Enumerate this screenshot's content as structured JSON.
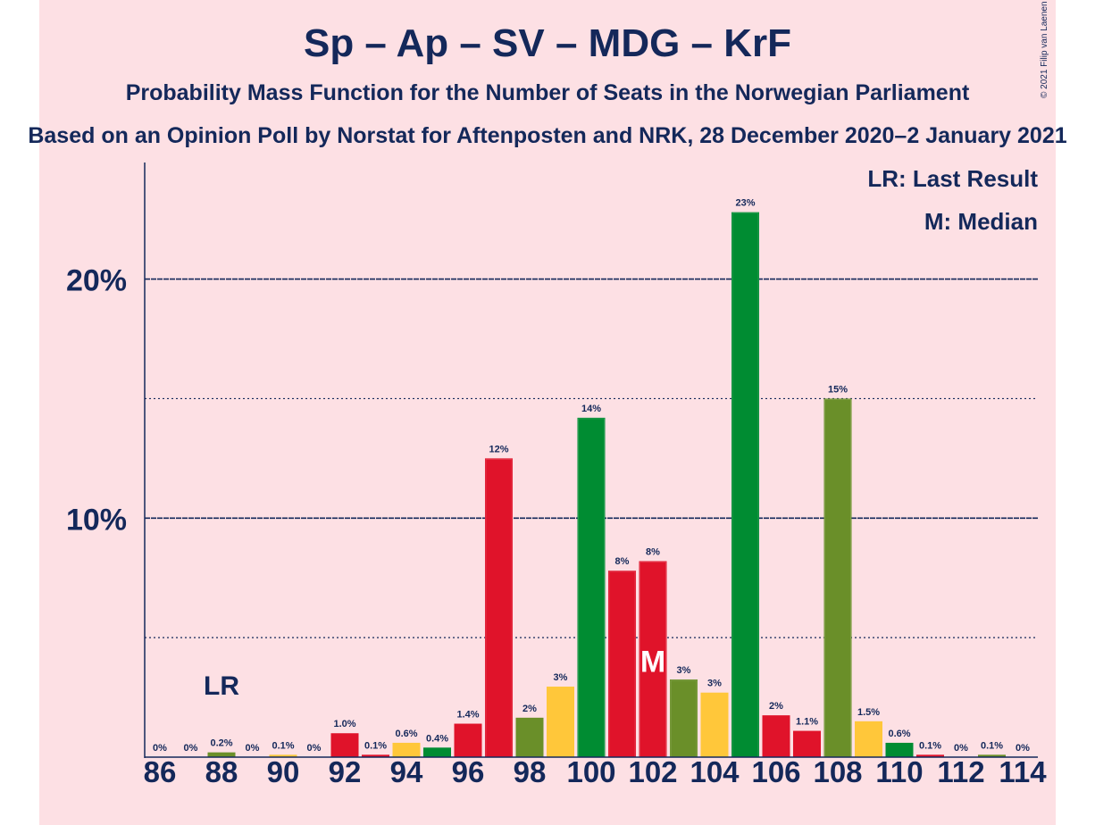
{
  "chart_data": {
    "type": "bar",
    "title": "Sp – Ap – SV – MDG – KrF",
    "subtitle": "Probability Mass Function for the Number of Seats in the Norwegian Parliament",
    "source_line": "Based on an Opinion Poll by Norstat for Aftenposten and NRK, 28 December 2020–2 January 2021",
    "credit": "© 2021 Filip van Laenen",
    "legend": {
      "lr": "LR: Last Result",
      "median": "M: Median",
      "placement": "top-right"
    },
    "x": [
      86,
      87,
      88,
      89,
      90,
      91,
      92,
      93,
      94,
      95,
      96,
      97,
      98,
      99,
      100,
      101,
      102,
      103,
      104,
      105,
      106,
      107,
      108,
      109,
      110,
      111,
      112,
      113,
      114
    ],
    "values": [
      0,
      0,
      0.2,
      0,
      0.1,
      0,
      1.0,
      0.1,
      0.6,
      0.4,
      1.4,
      12.5,
      1.65,
      2.95,
      14.2,
      7.8,
      8.2,
      3.25,
      2.7,
      22.8,
      1.75,
      1.1,
      15.0,
      1.5,
      0.6,
      0.1,
      0,
      0.1,
      0
    ],
    "labels": [
      "0%",
      "0%",
      "0.2%",
      "0%",
      "0.1%",
      "0%",
      "1.0%",
      "0.1%",
      "0.6%",
      "0.4%",
      "1.4%",
      "12%",
      "2%",
      "3%",
      "14%",
      "8%",
      "8%",
      "3%",
      "3%",
      "23%",
      "2%",
      "1.1%",
      "15%",
      "1.5%",
      "0.6%",
      "0.1%",
      "0%",
      "0.1%",
      "0%"
    ],
    "xticks": [
      "86",
      "88",
      "90",
      "92",
      "94",
      "96",
      "98",
      "100",
      "102",
      "104",
      "106",
      "108",
      "110",
      "112",
      "114"
    ],
    "ytick_labels": [
      "10%",
      "20%"
    ],
    "ylim": [
      0,
      25
    ],
    "grid": {
      "major": [
        10,
        20
      ],
      "minor": [
        5,
        15
      ]
    },
    "last_result": {
      "seat": 88,
      "label": "LR"
    },
    "median": {
      "seat": 102,
      "label": "M"
    },
    "colors": {
      "background": "#fde0e4",
      "text": "#14285a",
      "palette": [
        "#e0132a",
        "#6a8f29",
        "#ffc73a",
        "#008c32",
        "#e0132a",
        "#e0132a",
        "#6a8f29",
        "#ffc73a",
        "#008c32",
        "#e0132a"
      ],
      "bar_colors": [
        "#e0132a",
        "#008c32",
        "#6a8f29",
        "#e0132a",
        "#ffc73a",
        "#e0132a",
        "#e0132a",
        "#e0132a",
        "#ffc73a",
        "#008c32",
        "#e0132a",
        "#e0132a",
        "#6a8f29",
        "#ffc73a",
        "#008c32",
        "#e0132a",
        "#e0132a",
        "#6a8f29",
        "#ffc73a",
        "#008c32",
        "#e0132a",
        "#e0132a",
        "#6a8f29",
        "#ffc73a",
        "#008c32",
        "#e0132a",
        "#e0132a",
        "#6a8f29",
        "#ffc73a"
      ]
    }
  }
}
